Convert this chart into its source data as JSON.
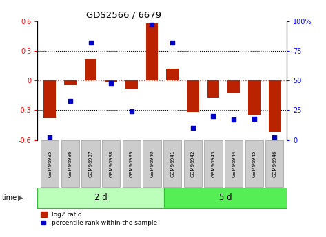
{
  "title": "GDS2566 / 6679",
  "samples": [
    "GSM96935",
    "GSM96936",
    "GSM96937",
    "GSM96938",
    "GSM96939",
    "GSM96940",
    "GSM96941",
    "GSM96942",
    "GSM96943",
    "GSM96944",
    "GSM96945",
    "GSM96946"
  ],
  "log2_ratio": [
    -0.38,
    -0.05,
    0.22,
    -0.02,
    -0.08,
    0.58,
    0.12,
    -0.32,
    -0.17,
    -0.13,
    -0.35,
    -0.52
  ],
  "percentile_rank": [
    2,
    33,
    82,
    48,
    24,
    97,
    82,
    10,
    20,
    17,
    18,
    2
  ],
  "group1_label": "2 d",
  "group1_count": 6,
  "group2_label": "5 d",
  "group2_count": 6,
  "legend_bar": "log2 ratio",
  "legend_dot": "percentile rank within the sample",
  "bar_color": "#bb2200",
  "dot_color": "#0000cc",
  "group1_color": "#bbffbb",
  "group2_color": "#55ee55",
  "sample_box_color": "#cccccc",
  "ylim_left": [
    -0.6,
    0.6
  ],
  "ylim_right": [
    0,
    100
  ],
  "yticks_left": [
    -0.6,
    -0.3,
    0,
    0.3,
    0.6
  ],
  "yticks_right": [
    0,
    25,
    50,
    75,
    100
  ],
  "zero_line_color": "#ff4444"
}
